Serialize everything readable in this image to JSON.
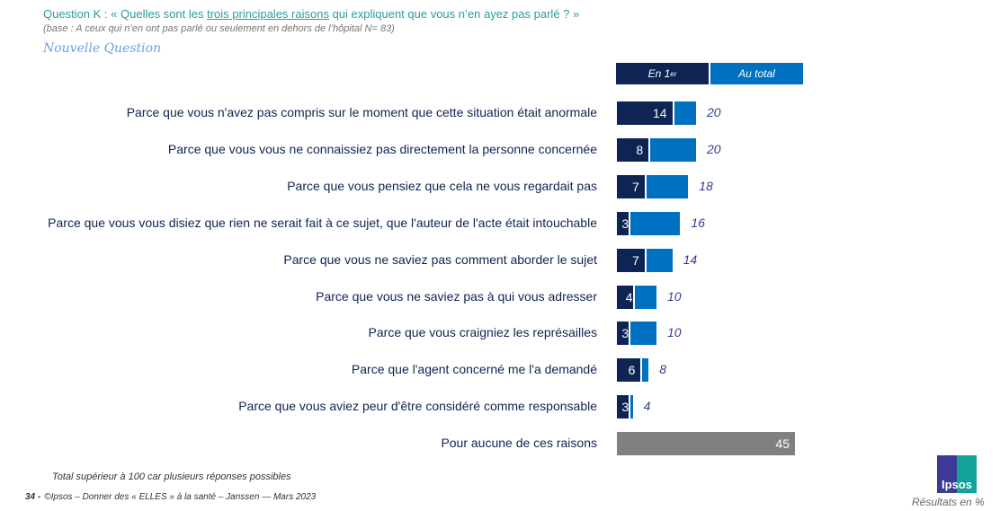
{
  "header": {
    "question_prefix": "Question K : « Quelles sont les ",
    "question_emph": "trois principales raisons",
    "question_suffix": " qui expliquent que vous n’en ayez pas parlé ? »",
    "base": "(base : A ceux qui n’en ont pas parlé ou seulement en dehors de l’hôpital N= 83)",
    "new_label": "Nouvelle Question"
  },
  "chart_data": {
    "type": "bar",
    "legend": [
      "En 1er",
      "Au total"
    ],
    "legend_sup": "er",
    "legend_first": "En 1",
    "categories": [
      "Parce que vous n'avez pas compris sur le moment que cette situation était anormale",
      "Parce que vous vous ne connaissiez pas directement la personne concernée",
      "Parce que vous pensiez que cela ne vous regardait pas",
      "Parce que vous vous disiez que rien ne serait fait à ce sujet, que l'auteur de l'acte était intouchable",
      "Parce que vous ne saviez pas comment aborder le sujet",
      "Parce que vous ne saviez pas à qui vous adresser",
      "Parce que vous craigniez les représailles",
      "Parce que l'agent concerné me l'a demandé",
      "Parce que vous aviez peur d'être considéré comme responsable",
      "Pour aucune de ces raisons"
    ],
    "series": [
      {
        "name": "En 1er",
        "values": [
          14,
          8,
          7,
          3,
          7,
          4,
          3,
          6,
          3,
          null
        ]
      },
      {
        "name": "Au total",
        "values": [
          20,
          20,
          18,
          16,
          14,
          10,
          10,
          8,
          4,
          45
        ]
      }
    ],
    "colors": {
      "first": "#0e2452",
      "total": "#0070c0",
      "none": "#808080"
    }
  },
  "footer": {
    "note": "Total supérieur à 100 car plusieurs réponses possibles",
    "page": "34 -",
    "source": "©Ipsos – Donner des « ELLES » à la santé – Janssen — Mars 2023",
    "results": "Résultats en %",
    "logo": "Ipsos"
  }
}
